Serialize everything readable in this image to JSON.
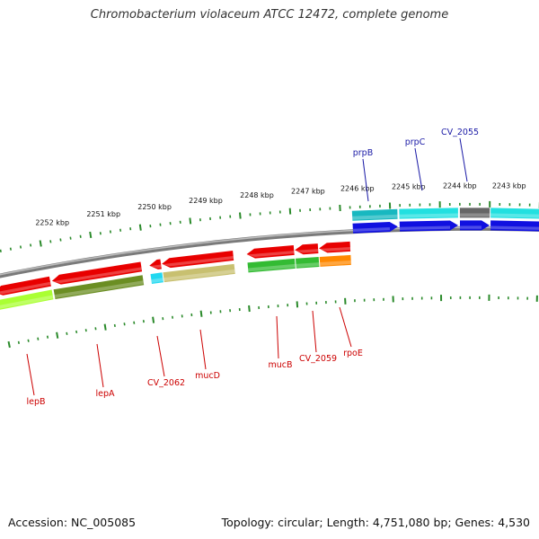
{
  "title": "Chromobacterium violaceum ATCC 12472, complete genome",
  "footer": {
    "accession": "Accession: NC_005085",
    "summary": "Topology: circular; Length: 4,751,080 bp; Genes: 4,530"
  },
  "colors": {
    "backbone": "#7a7a7a",
    "tick": "#2a8a2a",
    "top_label": "#1a1aa6",
    "bottom_label": "#cc0000"
  },
  "scale": {
    "unit": "kbp",
    "labels": [
      "2243 kbp",
      "2244 kbp",
      "2245 kbp",
      "2246 kbp",
      "2247 kbp",
      "2248 kbp",
      "2249 kbp",
      "2250 kbp",
      "2251 kbp",
      "2252 kbp"
    ],
    "labels_above_backbone": true
  },
  "genes": [
    {
      "name": "CV_2055",
      "strand": "plus",
      "color": "#1010e0",
      "cog_color": "#666666",
      "labeled": true
    },
    {
      "name": "prpC",
      "strand": "plus",
      "color": "#1010e0",
      "cog_color": "#22e0e0",
      "labeled": true
    },
    {
      "name": "prpB",
      "strand": "plus",
      "color": "#1010e0",
      "cog_color": "#18b8c0",
      "labeled": true
    },
    {
      "name": "rpoE",
      "strand": "minus",
      "color": "#e80000",
      "cog_color": "#ff8800",
      "labeled": true
    },
    {
      "name": "CV_2059",
      "strand": "minus",
      "color": "#e80000",
      "cog_color": "#33bb33",
      "labeled": true
    },
    {
      "name": "mucB",
      "strand": "minus",
      "color": "#e80000",
      "cog_color": "#33bb33",
      "labeled": true
    },
    {
      "name": "mucD",
      "strand": "minus",
      "color": "#e80000",
      "cog_color": "#c8c070",
      "labeled": true
    },
    {
      "name": "CV_2062",
      "strand": "minus",
      "color": "#e80000",
      "cog_color": "#22d8f0",
      "labeled": true
    },
    {
      "name": "lepA",
      "strand": "minus",
      "color": "#e80000",
      "cog_color": "#6b8e23",
      "labeled": true
    },
    {
      "name": "lepB",
      "strand": "minus",
      "color": "#e80000",
      "cog_color": "#aaff33",
      "labeled": true
    }
  ]
}
